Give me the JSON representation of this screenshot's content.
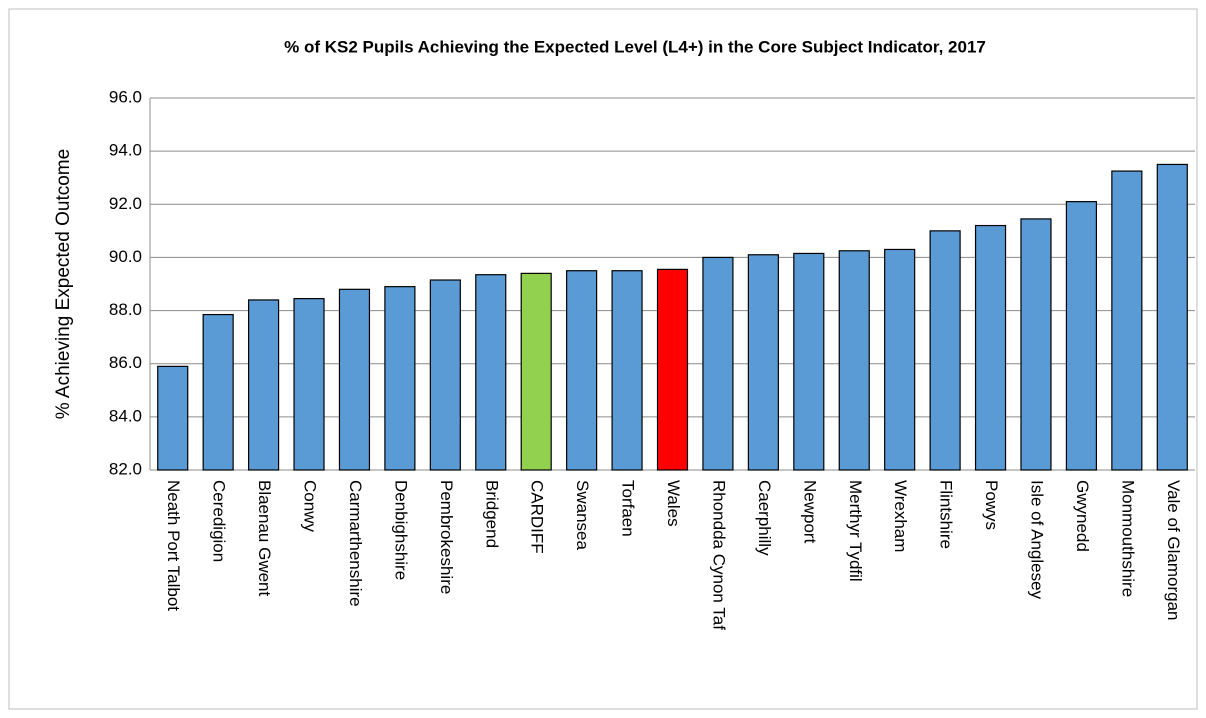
{
  "chart_data": {
    "type": "bar",
    "title": "% of KS2 Pupils Achieving the Expected Level (L4+) in the Core Subject Indicator, 2017",
    "y_label": "% Achieving Expected Outcome",
    "categories": [
      "Neath Port Talbot",
      "Ceredigion",
      "Blaenau Gwent",
      "Conwy",
      "Carmarthenshire",
      "Denbighshire",
      "Pembrokeshire",
      "Bridgend",
      "CARDIFF",
      "Swansea",
      "Torfaen",
      "Wales",
      "Rhondda Cynon Taf",
      "Caerphilly",
      "Newport",
      "Merthyr Tydfil",
      "Wrexham",
      "Flintshire",
      "Powys",
      "Isle of Anglesey",
      "Gwynedd",
      "Monmouthshire",
      "Vale of Glamorgan"
    ],
    "values": [
      85.9,
      87.85,
      88.4,
      88.45,
      88.8,
      88.9,
      89.15,
      89.35,
      89.4,
      89.5,
      89.5,
      89.55,
      90.0,
      90.1,
      90.15,
      90.25,
      90.3,
      91.0,
      91.2,
      91.45,
      92.1,
      93.25,
      93.5
    ],
    "colors": [
      "#5b9bd5",
      "#5b9bd5",
      "#5b9bd5",
      "#5b9bd5",
      "#5b9bd5",
      "#5b9bd5",
      "#5b9bd5",
      "#5b9bd5",
      "#92d050",
      "#5b9bd5",
      "#5b9bd5",
      "#ff0000",
      "#5b9bd5",
      "#5b9bd5",
      "#5b9bd5",
      "#5b9bd5",
      "#5b9bd5",
      "#5b9bd5",
      "#5b9bd5",
      "#5b9bd5",
      "#5b9bd5",
      "#5b9bd5",
      "#5b9bd5"
    ],
    "ylim": [
      82,
      96
    ],
    "yticks": [
      {
        "value": 82,
        "label": "82.0"
      },
      {
        "value": 84,
        "label": "84.0"
      },
      {
        "value": 86,
        "label": "86.0"
      },
      {
        "value": 88,
        "label": "88.0"
      },
      {
        "value": 90,
        "label": "90.0"
      },
      {
        "value": 92,
        "label": "92.0"
      },
      {
        "value": 94,
        "label": "94.0"
      },
      {
        "value": 96,
        "label": "96.0"
      }
    ],
    "grid": true
  }
}
